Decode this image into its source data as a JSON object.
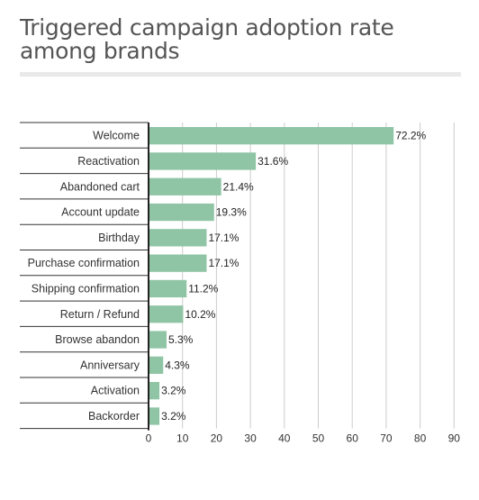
{
  "title_line1": "Triggered campaign adoption rate",
  "title_line2": "among brands",
  "chart_data": {
    "type": "bar",
    "orientation": "horizontal",
    "title": "Triggered campaign adoption rate among brands",
    "categories": [
      "Welcome",
      "Reactivation",
      "Abandoned cart",
      "Account update",
      "Birthday",
      "Purchase confirmation",
      "Shipping confirmation",
      "Return / Refund",
      "Browse abandon",
      "Anniversary",
      "Activation",
      "Backorder"
    ],
    "values": [
      72.2,
      31.6,
      21.4,
      19.3,
      17.1,
      17.1,
      11.2,
      10.2,
      5.3,
      4.3,
      3.2,
      3.2
    ],
    "value_labels": [
      "72.2%",
      "31.6%",
      "21.4%",
      "19.3%",
      "17.1%",
      "17.1%",
      "11.2%",
      "10.2%",
      "5.3%",
      "4.3%",
      "3.2%",
      "3.2%"
    ],
    "xlim": [
      0,
      90
    ],
    "xticks": [
      0,
      10,
      20,
      30,
      40,
      50,
      60,
      70,
      80,
      90
    ],
    "xlabel": "",
    "ylabel": "",
    "grid": true,
    "legend": "none",
    "bar_color": "#8fc5a5"
  }
}
